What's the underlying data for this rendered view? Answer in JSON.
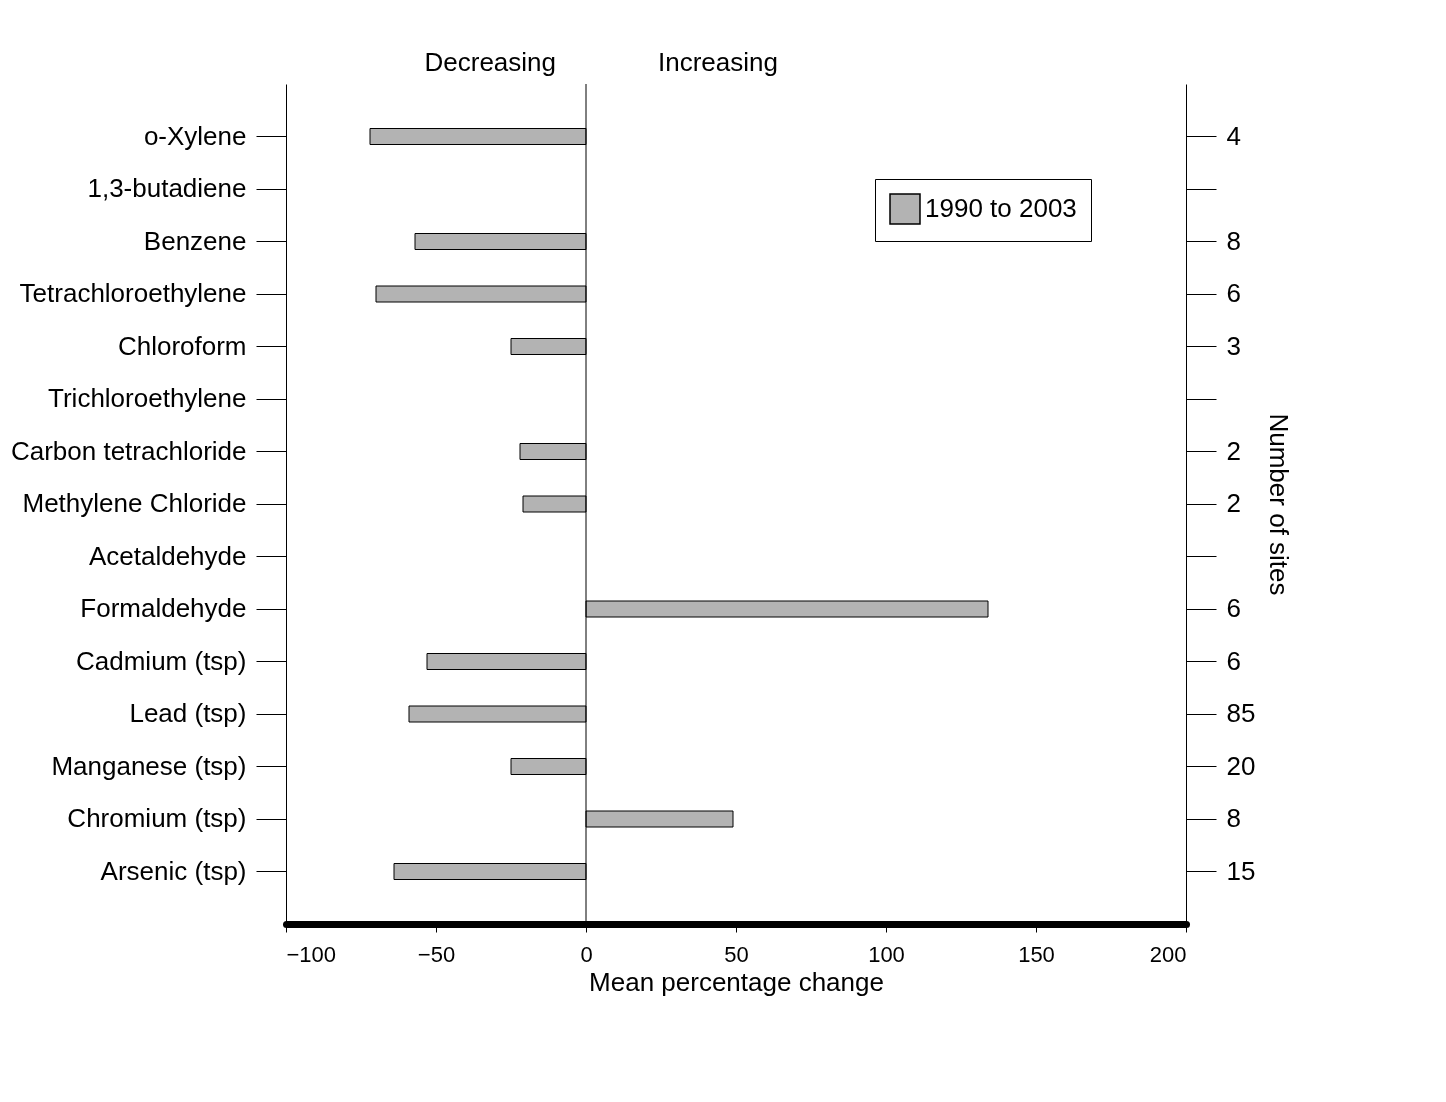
{
  "chart_data": {
    "type": "bar",
    "orientation": "horizontal",
    "categories": [
      "o-Xylene",
      "1,3-butadiene",
      "Benzene",
      "Tetrachloroethylene",
      "Chloroform",
      "Trichloroethylene",
      "Carbon tetrachloride",
      "Methylene Chloride",
      "Acetaldehyde",
      "Formaldehyde",
      "Cadmium (tsp)",
      "Lead (tsp)",
      "Manganese (tsp)",
      "Chromium (tsp)",
      "Arsenic (tsp)"
    ],
    "y2_categories": [
      "4",
      null,
      "8",
      "6",
      "3",
      null,
      "2",
      "2",
      null,
      "6",
      "6",
      "85",
      "20",
      "8",
      "15"
    ],
    "series": [
      {
        "name": "1990 to 2003",
        "color": "#b3b3b3",
        "values": [
          -72,
          null,
          -57,
          -70,
          -25,
          null,
          -22,
          -21,
          null,
          134,
          -53,
          -59,
          -25,
          49,
          -64
        ]
      }
    ],
    "xlabel": "Mean percentage change",
    "y2label": "Number of sites",
    "xlim": [
      -100,
      200
    ],
    "xticks": [
      -100,
      -50,
      0,
      50,
      100,
      150,
      200
    ],
    "annotations": [
      "Decreasing",
      "Increasing"
    ],
    "ref_lines": [
      {
        "axis": "x",
        "value": 0,
        "label": null,
        "color": "#000000"
      }
    ],
    "legend": "top right",
    "grid": false
  }
}
